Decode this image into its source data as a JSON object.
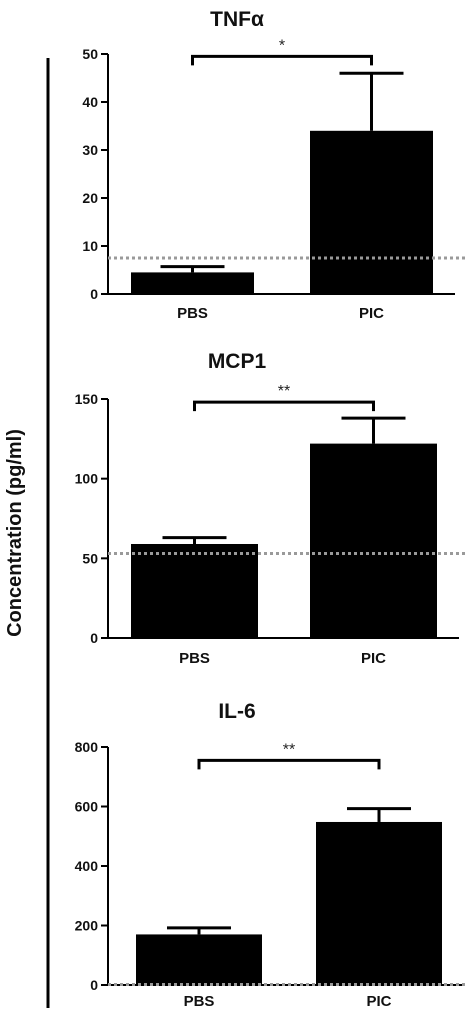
{
  "y_axis_label": "Concentration (pg/ml)",
  "colors": {
    "bar": "#000000",
    "axis": "#000000",
    "threshold": "#9a9a9a",
    "text": "#111111"
  },
  "chart_data": [
    {
      "type": "bar",
      "title": "TNFα",
      "categories": [
        "PBS",
        "PIC"
      ],
      "values": [
        4.5,
        34
      ],
      "errors": [
        1.2,
        12
      ],
      "ylim": [
        0,
        50
      ],
      "yticks": [
        0,
        10,
        20,
        30,
        40,
        50
      ],
      "threshold": 7.5,
      "significance": {
        "label": "*",
        "between": [
          "PBS",
          "PIC"
        ],
        "value": 49.5
      }
    },
    {
      "type": "bar",
      "title": "MCP1",
      "categories": [
        "PBS",
        "PIC"
      ],
      "values": [
        59,
        122
      ],
      "errors": [
        4,
        16
      ],
      "ylim": [
        0,
        150
      ],
      "yticks": [
        0,
        50,
        100,
        150
      ],
      "threshold": 53,
      "significance": {
        "label": "**",
        "between": [
          "PBS",
          "PIC"
        ],
        "value": 148
      }
    },
    {
      "type": "bar",
      "title": "IL-6",
      "categories": [
        "PBS",
        "PIC"
      ],
      "values": [
        170,
        548
      ],
      "errors": [
        22,
        45
      ],
      "ylim": [
        0,
        800
      ],
      "yticks": [
        0,
        200,
        400,
        600,
        800
      ],
      "threshold": 0,
      "significance": {
        "label": "**",
        "between": [
          "PBS",
          "PIC"
        ],
        "value": 755
      }
    }
  ]
}
